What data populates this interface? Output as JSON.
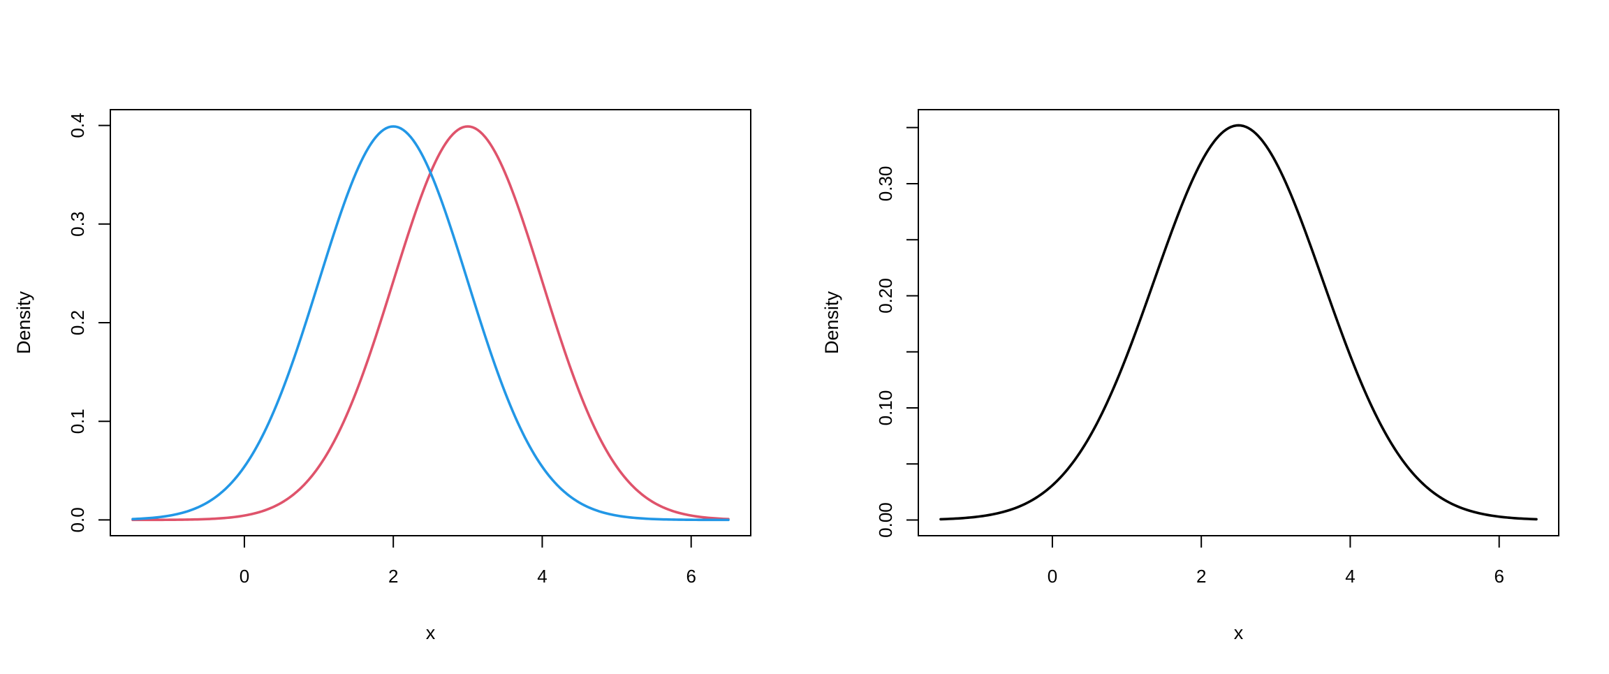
{
  "chart_data": [
    {
      "type": "line",
      "title": "",
      "xlabel": "x",
      "ylabel": "Density",
      "xlim": [
        -1.8,
        6.8
      ],
      "ylim": [
        -0.016,
        0.416
      ],
      "x_ticks": [
        0,
        2,
        4,
        6
      ],
      "x_tick_labels": [
        "0",
        "2",
        "4",
        "6"
      ],
      "y_ticks": [
        0.0,
        0.1,
        0.2,
        0.3,
        0.4
      ],
      "y_tick_labels": [
        "0.0",
        "0.1",
        "0.2",
        "0.3",
        "0.4"
      ],
      "grid": false,
      "series": [
        {
          "color": "#DF536B",
          "x": [
            -1.5,
            -1.0,
            -0.5,
            0.0,
            0.5,
            1.0,
            1.5,
            2.0,
            2.5,
            3.0,
            3.5,
            4.0,
            4.5,
            5.0,
            5.5,
            6.0,
            6.5
          ],
          "y": [
            0.0,
            0.0,
            0.001,
            0.004,
            0.018,
            0.054,
            0.13,
            0.242,
            0.352,
            0.399,
            0.352,
            0.242,
            0.13,
            0.054,
            0.018,
            0.004,
            0.001
          ]
        },
        {
          "color": "#2297E6",
          "x": [
            -1.5,
            -1.0,
            -0.5,
            0.0,
            0.5,
            1.0,
            1.5,
            2.0,
            2.5,
            3.0,
            3.5,
            4.0,
            4.5,
            5.0,
            5.5,
            6.0,
            6.5
          ],
          "y": [
            0.001,
            0.004,
            0.018,
            0.054,
            0.13,
            0.242,
            0.352,
            0.399,
            0.352,
            0.242,
            0.13,
            0.054,
            0.018,
            0.004,
            0.001,
            0.0,
            0.0
          ]
        }
      ]
    },
    {
      "type": "line",
      "title": "",
      "xlabel": "x",
      "ylabel": "Density",
      "xlim": [
        -1.8,
        6.8
      ],
      "ylim": [
        -0.014,
        0.366
      ],
      "x_ticks": [
        0,
        2,
        4,
        6
      ],
      "x_tick_labels": [
        "0",
        "2",
        "4",
        "6"
      ],
      "y_ticks": [
        0.0,
        0.05,
        0.1,
        0.15,
        0.2,
        0.25,
        0.3,
        0.35
      ],
      "y_tick_labels": [
        "0.00",
        "",
        "0.10",
        "",
        "0.20",
        "",
        "0.30",
        ""
      ],
      "grid": false,
      "series": [
        {
          "color": "#000000",
          "x": [
            -1.5,
            -1.0,
            -0.5,
            0.0,
            0.5,
            1.0,
            1.5,
            2.0,
            2.5,
            3.0,
            3.5,
            4.0,
            4.5,
            5.0,
            5.5,
            6.0,
            6.5
          ],
          "y": [
            0.001,
            0.003,
            0.01,
            0.029,
            0.067,
            0.132,
            0.219,
            0.31,
            0.352,
            0.31,
            0.219,
            0.132,
            0.067,
            0.029,
            0.01,
            0.003,
            0.001
          ]
        }
      ]
    }
  ]
}
